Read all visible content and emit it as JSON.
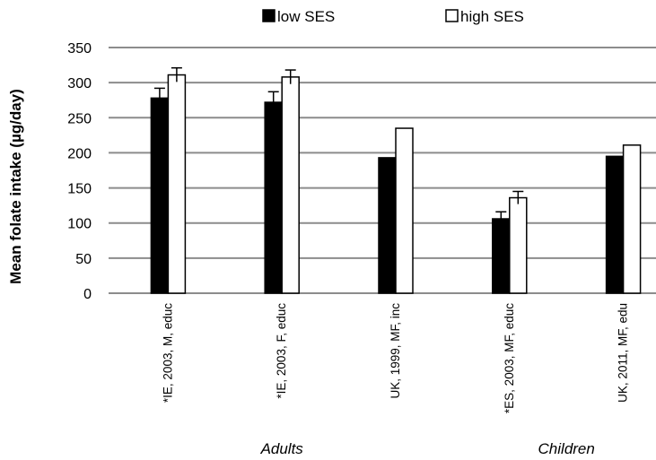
{
  "chart_data": {
    "type": "bar",
    "title": "",
    "xlabel": "",
    "ylabel": "Mean folate intake (µg/day)",
    "ylim": [
      0,
      350
    ],
    "yticks": [
      0,
      50,
      100,
      150,
      200,
      250,
      300,
      350
    ],
    "grid": true,
    "legend_position": "top",
    "categories": [
      "*IE, 2003, M, educ",
      "*IE, 2003, F, educ",
      "UK, 1999, MF, inc",
      "*ES, 2003, MF, educ",
      "UK, 2011, MF, edu"
    ],
    "groups": [
      {
        "label": "Adults",
        "categories": [
          0,
          1,
          2
        ]
      },
      {
        "label": "Children",
        "categories": [
          3,
          4
        ]
      }
    ],
    "series": [
      {
        "name": "low SES",
        "color": "#000000",
        "values": [
          278,
          272,
          193,
          106,
          195
        ],
        "errors": [
          14,
          15,
          null,
          10,
          null
        ]
      },
      {
        "name": "high SES",
        "color": "#ffffff",
        "values": [
          311,
          308,
          235,
          136,
          211
        ],
        "errors": [
          10,
          10,
          null,
          9,
          null
        ]
      }
    ]
  }
}
